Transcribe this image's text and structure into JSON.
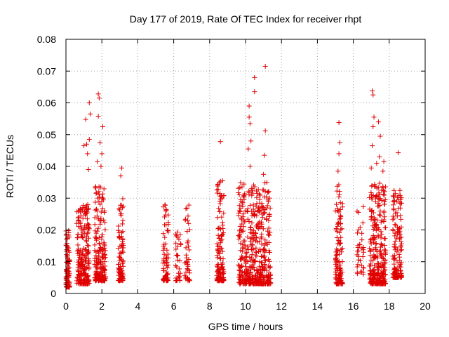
{
  "chart_data": {
    "type": "scatter",
    "title": "Day 177 of 2019, Rate Of TEC Index for receiver rhpt",
    "xlabel": "GPS time / hours",
    "ylabel": "ROTI / TECUs",
    "xlim": [
      0,
      20
    ],
    "ylim": [
      0,
      0.08
    ],
    "x_ticks": [
      "0",
      "2",
      "4",
      "6",
      "8",
      "10",
      "12",
      "14",
      "16",
      "18",
      "20"
    ],
    "y_ticks": [
      "0",
      "0.01",
      "0.02",
      "0.03",
      "0.04",
      "0.05",
      "0.06",
      "0.07",
      "0.08"
    ],
    "grid": true,
    "marker": "+",
    "marker_color": "#e00000",
    "series": [
      {
        "name": "ROTI",
        "clusters": [
          {
            "x": [
              0.0,
              0.2
            ],
            "y": [
              0.002,
              0.02
            ],
            "n": 90
          },
          {
            "x": [
              0.6,
              1.3
            ],
            "y": [
              0.003,
              0.028
            ],
            "n": 220
          },
          {
            "x": [
              1.6,
              2.2
            ],
            "y": [
              0.004,
              0.035
            ],
            "n": 200
          },
          {
            "x": [
              2.9,
              3.2
            ],
            "y": [
              0.004,
              0.03
            ],
            "n": 90
          },
          {
            "x": [
              5.4,
              5.7
            ],
            "y": [
              0.004,
              0.028
            ],
            "n": 70
          },
          {
            "x": [
              6.1,
              6.4
            ],
            "y": [
              0.004,
              0.022
            ],
            "n": 30
          },
          {
            "x": [
              6.6,
              6.9
            ],
            "y": [
              0.004,
              0.028
            ],
            "n": 40
          },
          {
            "x": [
              8.4,
              8.8
            ],
            "y": [
              0.004,
              0.036
            ],
            "n": 140
          },
          {
            "x": [
              9.6,
              11.4
            ],
            "y": [
              0.003,
              0.035
            ],
            "n": 480
          },
          {
            "x": [
              15.0,
              15.4
            ],
            "y": [
              0.003,
              0.035
            ],
            "n": 120
          },
          {
            "x": [
              16.2,
              16.6
            ],
            "y": [
              0.006,
              0.031
            ],
            "n": 35
          },
          {
            "x": [
              16.9,
              17.8
            ],
            "y": [
              0.003,
              0.035
            ],
            "n": 300
          },
          {
            "x": [
              18.2,
              18.7
            ],
            "y": [
              0.005,
              0.033
            ],
            "n": 150
          }
        ],
        "highlights": [
          {
            "x": 1.1,
            "y": 0.0548
          },
          {
            "x": 1.15,
            "y": 0.047
          },
          {
            "x": 1.3,
            "y": 0.06
          },
          {
            "x": 1.35,
            "y": 0.0565
          },
          {
            "x": 1.3,
            "y": 0.0485
          },
          {
            "x": 1.2,
            "y": 0.044
          },
          {
            "x": 1.25,
            "y": 0.039
          },
          {
            "x": 1.0,
            "y": 0.0465
          },
          {
            "x": 1.8,
            "y": 0.0628
          },
          {
            "x": 1.85,
            "y": 0.0615
          },
          {
            "x": 1.8,
            "y": 0.0558
          },
          {
            "x": 1.9,
            "y": 0.0475
          },
          {
            "x": 2.05,
            "y": 0.0525
          },
          {
            "x": 2.0,
            "y": 0.044
          },
          {
            "x": 1.95,
            "y": 0.04
          },
          {
            "x": 1.75,
            "y": 0.0415
          },
          {
            "x": 3.1,
            "y": 0.0395
          },
          {
            "x": 3.05,
            "y": 0.037
          },
          {
            "x": 8.6,
            "y": 0.0478
          },
          {
            "x": 10.2,
            "y": 0.059
          },
          {
            "x": 10.2,
            "y": 0.0555
          },
          {
            "x": 10.25,
            "y": 0.0535
          },
          {
            "x": 10.3,
            "y": 0.048
          },
          {
            "x": 10.15,
            "y": 0.0455
          },
          {
            "x": 10.25,
            "y": 0.04
          },
          {
            "x": 10.5,
            "y": 0.068
          },
          {
            "x": 10.5,
            "y": 0.0635
          },
          {
            "x": 11.1,
            "y": 0.0715
          },
          {
            "x": 11.1,
            "y": 0.0512
          },
          {
            "x": 11.05,
            "y": 0.0435
          },
          {
            "x": 11.0,
            "y": 0.0375
          },
          {
            "x": 15.2,
            "y": 0.0538
          },
          {
            "x": 15.25,
            "y": 0.0475
          },
          {
            "x": 15.2,
            "y": 0.044
          },
          {
            "x": 15.15,
            "y": 0.0385
          },
          {
            "x": 17.05,
            "y": 0.0638
          },
          {
            "x": 17.1,
            "y": 0.0625
          },
          {
            "x": 17.15,
            "y": 0.0555
          },
          {
            "x": 17.1,
            "y": 0.0525
          },
          {
            "x": 17.05,
            "y": 0.0465
          },
          {
            "x": 17.4,
            "y": 0.054
          },
          {
            "x": 17.5,
            "y": 0.0495
          },
          {
            "x": 17.45,
            "y": 0.043
          },
          {
            "x": 17.3,
            "y": 0.041
          },
          {
            "x": 17.7,
            "y": 0.0415
          },
          {
            "x": 17.65,
            "y": 0.0385
          },
          {
            "x": 17.0,
            "y": 0.0395
          },
          {
            "x": 18.5,
            "y": 0.0443
          }
        ]
      }
    ]
  }
}
